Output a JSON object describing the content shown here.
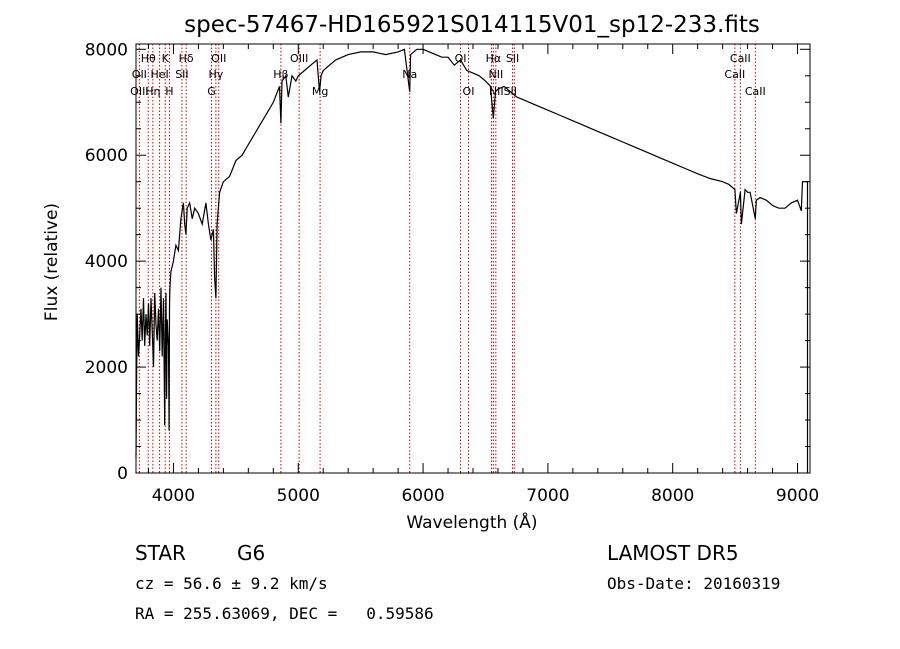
{
  "chart_data": {
    "type": "line",
    "title": "spec-57467-HD165921S014115V01_sp12-233.fits",
    "xlabel": "Wavelength (Å)",
    "ylabel": "Flux (relative)",
    "xlim": [
      3700,
      9100
    ],
    "ylim": [
      0,
      8100
    ],
    "x_ticks": [
      4000,
      5000,
      6000,
      7000,
      8000,
      9000
    ],
    "y_ticks": [
      0,
      2000,
      4000,
      6000,
      8000
    ],
    "x_tick_labels": [
      "4000",
      "5000",
      "6000",
      "7000",
      "8000",
      "9000"
    ],
    "y_tick_labels": [
      "0",
      "2000",
      "4000",
      "6000",
      "8000"
    ],
    "grid": false,
    "series": [
      {
        "color": "#000000",
        "x": [
          3700,
          3705,
          3710,
          3720,
          3730,
          3740,
          3750,
          3760,
          3770,
          3780,
          3790,
          3800,
          3810,
          3820,
          3830,
          3840,
          3850,
          3860,
          3870,
          3880,
          3890,
          3900,
          3910,
          3920,
          3930,
          3935,
          3940,
          3945,
          3950,
          3960,
          3965,
          3968,
          3972,
          3980,
          3990,
          4000,
          4020,
          4040,
          4060,
          4080,
          4090,
          4100,
          4110,
          4130,
          4150,
          4170,
          4200,
          4230,
          4260,
          4280,
          4300,
          4320,
          4330,
          4340,
          4350,
          4370,
          4400,
          4450,
          4500,
          4550,
          4600,
          4650,
          4700,
          4750,
          4800,
          4850,
          4861,
          4870,
          4900,
          4920,
          4950,
          4980,
          5000,
          5050,
          5100,
          5150,
          5170,
          5183,
          5200,
          5250,
          5300,
          5400,
          5500,
          5600,
          5700,
          5800,
          5850,
          5893,
          5900,
          5950,
          6000,
          6050,
          6100,
          6150,
          6200,
          6250,
          6300,
          6350,
          6400,
          6450,
          6500,
          6540,
          6563,
          6580,
          6600,
          6650,
          6700,
          6750,
          6800,
          6900,
          7000,
          7100,
          7200,
          7300,
          7400,
          7500,
          7600,
          7700,
          7800,
          7900,
          8000,
          8100,
          8200,
          8300,
          8400,
          8450,
          8498,
          8510,
          8542,
          8550,
          8580,
          8600,
          8620,
          8662,
          8670,
          8700,
          8750,
          8800,
          8850,
          8900,
          8950,
          9000,
          9030,
          9040,
          9050,
          9060,
          9070,
          9080
        ],
        "y": [
          300,
          1800,
          3000,
          2200,
          2600,
          3100,
          2500,
          3300,
          2400,
          3000,
          2600,
          3200,
          2400,
          3300,
          2700,
          2000,
          3400,
          2800,
          2500,
          3100,
          2300,
          3500,
          2200,
          3300,
          900,
          2600,
          3400,
          1400,
          2900,
          2400,
          800,
          3100,
          3500,
          3800,
          3900,
          4000,
          4300,
          4200,
          4800,
          5100,
          4700,
          4500,
          5000,
          5100,
          4800,
          5000,
          4900,
          4700,
          5100,
          4700,
          4400,
          4600,
          3700,
          3300,
          4700,
          5300,
          5500,
          5600,
          5900,
          6000,
          6200,
          6400,
          6600,
          6800,
          7000,
          7300,
          6600,
          7400,
          7500,
          7100,
          7500,
          7400,
          7500,
          7600,
          7700,
          7800,
          7200,
          7500,
          7600,
          7700,
          7800,
          7900,
          7950,
          7950,
          7900,
          7950,
          8000,
          7200,
          7900,
          8000,
          8000,
          7950,
          7900,
          7850,
          7850,
          7700,
          7800,
          7600,
          7550,
          7500,
          7400,
          7300,
          6700,
          7200,
          7250,
          7300,
          7200,
          7100,
          7050,
          6950,
          6850,
          6750,
          6650,
          6550,
          6450,
          6350,
          6250,
          6150,
          6050,
          5950,
          5850,
          5750,
          5650,
          5560,
          5500,
          5450,
          5350,
          4900,
          5300,
          4700,
          5350,
          5300,
          5300,
          4800,
          5150,
          5200,
          5150,
          5050,
          5000,
          5000,
          5100,
          5150,
          4950,
          5500,
          5500,
          5500,
          5500,
          5500
        ]
      }
    ],
    "line_labels": [
      {
        "text": "Hθ",
        "x": 3798,
        "row": 1
      },
      {
        "text": "K",
        "x": 3934,
        "row": 1
      },
      {
        "text": "Hδ",
        "x": 4102,
        "row": 1
      },
      {
        "text": "OII",
        "x": 4363,
        "row": 1
      },
      {
        "text": "OIII",
        "x": 5007,
        "row": 1
      },
      {
        "text": "OI",
        "x": 6300,
        "row": 1
      },
      {
        "text": "Hα",
        "x": 6563,
        "row": 1
      },
      {
        "text": "SII",
        "x": 6717,
        "row": 1
      },
      {
        "text": "CaII",
        "x": 8542,
        "row": 1
      },
      {
        "text": "OII",
        "x": 3727,
        "row": 2
      },
      {
        "text": "HeI",
        "x": 3889,
        "row": 2
      },
      {
        "text": "SII",
        "x": 4068,
        "row": 2
      },
      {
        "text": "Hγ",
        "x": 4340,
        "row": 2
      },
      {
        "text": "Hβ",
        "x": 4861,
        "row": 2
      },
      {
        "text": "Na",
        "x": 5893,
        "row": 2
      },
      {
        "text": "NII",
        "x": 6583,
        "row": 2
      },
      {
        "text": "CaII",
        "x": 8498,
        "row": 2
      },
      {
        "text": "OIII",
        "x": 3727,
        "row": 3
      },
      {
        "text": "Hη",
        "x": 3835,
        "row": 3
      },
      {
        "text": "H",
        "x": 3968,
        "row": 3
      },
      {
        "text": "G",
        "x": 4305,
        "row": 3
      },
      {
        "text": "Mg",
        "x": 5175,
        "row": 3
      },
      {
        "text": "OI",
        "x": 6364,
        "row": 3
      },
      {
        "text": "NIISII",
        "x": 6640,
        "row": 3
      },
      {
        "text": "CaII",
        "x": 8662,
        "row": 3
      }
    ],
    "line_marks": [
      3727,
      3798,
      3835,
      3889,
      3934,
      3968,
      4068,
      4102,
      4305,
      4340,
      4363,
      4861,
      5007,
      5175,
      5893,
      6300,
      6364,
      6548,
      6563,
      6583,
      6717,
      6731,
      8498,
      8542,
      8662
    ],
    "line_mark_color": "#cc0000"
  },
  "info": {
    "object_type": "STAR",
    "subclass": "G6",
    "survey": "LAMOST DR5",
    "redshift": "cz = 56.6 ± 9.2 km/s",
    "obs_date": "Obs-Date: 20160319",
    "coords": "RA = 255.63069, DEC =   0.59586"
  }
}
